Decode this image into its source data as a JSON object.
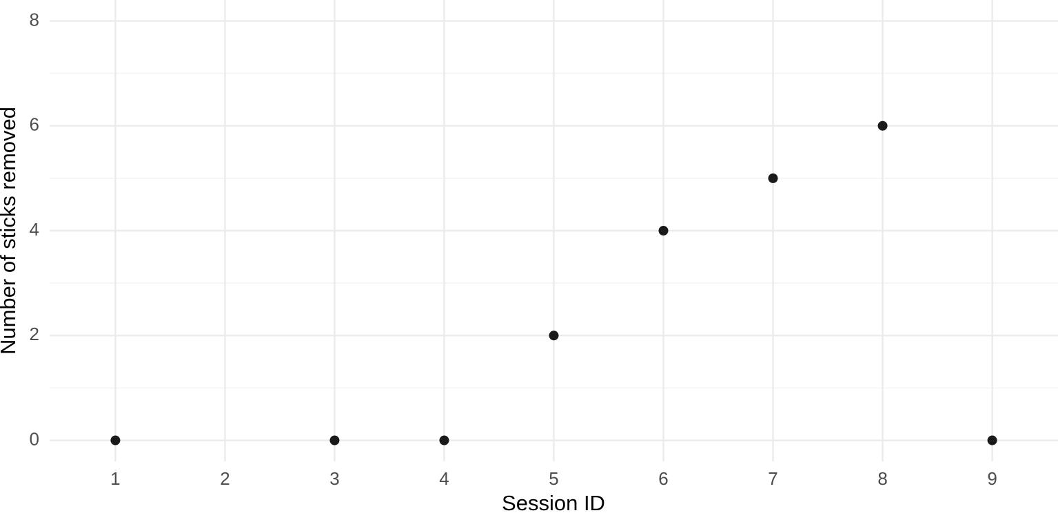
{
  "chart_data": {
    "type": "scatter",
    "x_label": "Session ID",
    "y_label": "Number of sticks removed",
    "series": [
      {
        "color": "#1a1a1a",
        "x": [
          1,
          3,
          4,
          5,
          6,
          7,
          8,
          9
        ],
        "values": [
          0,
          0,
          0,
          2,
          4,
          5,
          6,
          0
        ]
      }
    ],
    "xlim": [
      0.4,
      9.6
    ],
    "xticks": [
      1,
      2,
      3,
      4,
      5,
      6,
      7,
      8,
      9
    ],
    "ylim": [
      -0.4,
      8.4
    ],
    "yticks": [
      0,
      2,
      4,
      6,
      8
    ],
    "grid": true,
    "minor_grid": true
  }
}
